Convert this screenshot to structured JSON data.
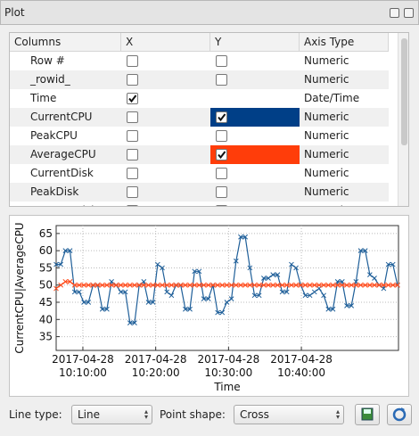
{
  "window": {
    "title": "Plot"
  },
  "table": {
    "headers": [
      "Columns",
      "X",
      "Y",
      "Axis Type"
    ],
    "rows": [
      {
        "name": "Row #",
        "x": false,
        "y": false,
        "type": "Numeric"
      },
      {
        "name": "_rowid_",
        "x": false,
        "y": false,
        "type": "Numeric"
      },
      {
        "name": "Time",
        "x": true,
        "y": null,
        "type": "Date/Time"
      },
      {
        "name": "CurrentCPU",
        "x": false,
        "y": true,
        "type": "Numeric",
        "color": "#003f87"
      },
      {
        "name": "PeakCPU",
        "x": false,
        "y": false,
        "type": "Numeric"
      },
      {
        "name": "AverageCPU",
        "x": false,
        "y": true,
        "type": "Numeric",
        "color": "#ff3d0a"
      },
      {
        "name": "CurrentDisk",
        "x": false,
        "y": false,
        "type": "Numeric"
      },
      {
        "name": "PeakDisk",
        "x": false,
        "y": false,
        "type": "Numeric"
      },
      {
        "name": "AverageDisk",
        "x": false,
        "y": false,
        "type": "Numeric"
      }
    ]
  },
  "chart_data": {
    "type": "line",
    "xlabel": "Time",
    "ylabel": "CurrentCPU|AverageCPU",
    "x": [
      "2017-04-28 10:06:20",
      "2017-04-28 10:06:58",
      "2017-04-28 10:07:36",
      "2017-04-28 10:08:14",
      "2017-04-28 10:08:52",
      "2017-04-28 10:09:30",
      "2017-04-28 10:10:08",
      "2017-04-28 10:10:46",
      "2017-04-28 10:11:24",
      "2017-04-28 10:12:02",
      "2017-04-28 10:12:40",
      "2017-04-28 10:13:18",
      "2017-04-28 10:13:56",
      "2017-04-28 10:14:34",
      "2017-04-28 10:15:12",
      "2017-04-28 10:15:50",
      "2017-04-28 10:16:28",
      "2017-04-28 10:17:06",
      "2017-04-28 10:17:44",
      "2017-04-28 10:18:22",
      "2017-04-28 10:19:00",
      "2017-04-28 10:19:38",
      "2017-04-28 10:20:16",
      "2017-04-28 10:20:54",
      "2017-04-28 10:21:32",
      "2017-04-28 10:22:10",
      "2017-04-28 10:22:48",
      "2017-04-28 10:23:26",
      "2017-04-28 10:24:04",
      "2017-04-28 10:24:42",
      "2017-04-28 10:25:20",
      "2017-04-28 10:25:58",
      "2017-04-28 10:26:36",
      "2017-04-28 10:27:14",
      "2017-04-28 10:27:52",
      "2017-04-28 10:28:30",
      "2017-04-28 10:29:08",
      "2017-04-28 10:29:46",
      "2017-04-28 10:30:24",
      "2017-04-28 10:31:02",
      "2017-04-28 10:31:40",
      "2017-04-28 10:32:18",
      "2017-04-28 10:32:56",
      "2017-04-28 10:33:34",
      "2017-04-28 10:34:12",
      "2017-04-28 10:34:50",
      "2017-04-28 10:35:28",
      "2017-04-28 10:36:06",
      "2017-04-28 10:36:44",
      "2017-04-28 10:37:22",
      "2017-04-28 10:38:00",
      "2017-04-28 10:38:38",
      "2017-04-28 10:39:16",
      "2017-04-28 10:39:54",
      "2017-04-28 10:40:32",
      "2017-04-28 10:41:10",
      "2017-04-28 10:41:48",
      "2017-04-28 10:42:26",
      "2017-04-28 10:43:04",
      "2017-04-28 10:43:42",
      "2017-04-28 10:44:20",
      "2017-04-28 10:44:58",
      "2017-04-28 10:45:36",
      "2017-04-28 10:46:14",
      "2017-04-28 10:46:52",
      "2017-04-28 10:47:30",
      "2017-04-28 10:48:08",
      "2017-04-28 10:48:46",
      "2017-04-28 10:49:24",
      "2017-04-28 10:50:02",
      "2017-04-28 10:50:40",
      "2017-04-28 10:51:18",
      "2017-04-28 10:51:56",
      "2017-04-28 10:52:34",
      "2017-04-28 10:53:12"
    ],
    "series": [
      {
        "name": "CurrentCPU",
        "color": "#1f5f99",
        "values": [
          56,
          56,
          60,
          60,
          48,
          48,
          45,
          45,
          50,
          50,
          43,
          43,
          51,
          50,
          48,
          48,
          39,
          39,
          50,
          51,
          45,
          45,
          56,
          55,
          48,
          47,
          50,
          50,
          43,
          43,
          54,
          54,
          46,
          46,
          50,
          42,
          42,
          45,
          46,
          57,
          64,
          64,
          55,
          47,
          47,
          52,
          52,
          53,
          53,
          48,
          48,
          56,
          55,
          50,
          47,
          47,
          48,
          49,
          47,
          43,
          43,
          51,
          51,
          44,
          44,
          51,
          60,
          60,
          53,
          52,
          50,
          49,
          56,
          56,
          50
        ]
      },
      {
        "name": "AverageCPU",
        "color": "#ff4a1a",
        "values": [
          49,
          50,
          51,
          51,
          50,
          50,
          50,
          50,
          50,
          50,
          50,
          50,
          50,
          50,
          50,
          50,
          50,
          50,
          50,
          50,
          50,
          50,
          50,
          50,
          50,
          50,
          50,
          50,
          50,
          50,
          50,
          50,
          50,
          50,
          50,
          50,
          50,
          50,
          50,
          50,
          50,
          50,
          50,
          50,
          50,
          50,
          50,
          50,
          50,
          50,
          50,
          50,
          50,
          50,
          50,
          50,
          50,
          50,
          50,
          50,
          50,
          50,
          50,
          50,
          50,
          50,
          50,
          50,
          50,
          50,
          50,
          50,
          50,
          50,
          50
        ]
      }
    ],
    "xlim": [
      "2017-04-28 10:06:20",
      "2017-04-28 10:53:20"
    ],
    "xticks": [
      "2017-04-28 10:10:00",
      "2017-04-28 10:20:00",
      "2017-04-28 10:30:00",
      "2017-04-28 10:40:00"
    ],
    "ylim": [
      31,
      67.3
    ],
    "yticks": [
      35,
      40,
      45,
      50,
      55,
      60,
      65
    ],
    "grid": true,
    "marker": "cross"
  },
  "controls": {
    "line_type_label": "Line type:",
    "line_type": "Line",
    "point_shape_label": "Point shape:",
    "point_shape": "Cross"
  }
}
